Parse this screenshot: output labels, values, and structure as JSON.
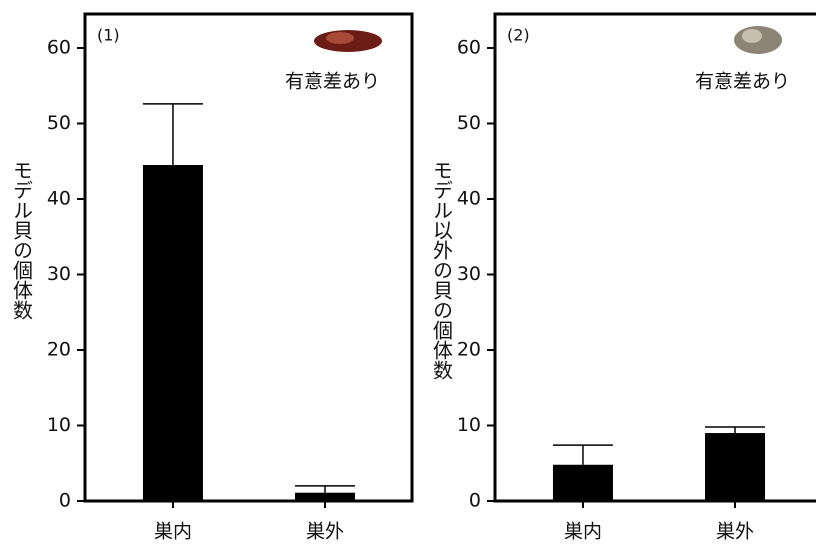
{
  "chart_data": [
    {
      "type": "bar",
      "title": "(1)",
      "annotation": "有意差あり",
      "y_label": "モデル貝の個体数",
      "categories": [
        "巣内",
        "巣外"
      ],
      "values": [
        44.5,
        1.1
      ],
      "errors": [
        8.1,
        0.9
      ],
      "color": "#000000",
      "ylim": [
        0,
        64.5
      ],
      "yticks": [
        0,
        10,
        20,
        30,
        40,
        50,
        60
      ]
    },
    {
      "type": "bar",
      "title": "(2)",
      "annotation": "有意差あり",
      "y_label": "モデル以外の貝の個体数",
      "categories": [
        "巣内",
        "巣外"
      ],
      "values": [
        4.8,
        9.0
      ],
      "errors": [
        2.6,
        0.8
      ],
      "color": "#000000",
      "ylim": [
        0,
        64.5
      ],
      "yticks": [
        0,
        10,
        20,
        30,
        40,
        50,
        60
      ]
    }
  ]
}
